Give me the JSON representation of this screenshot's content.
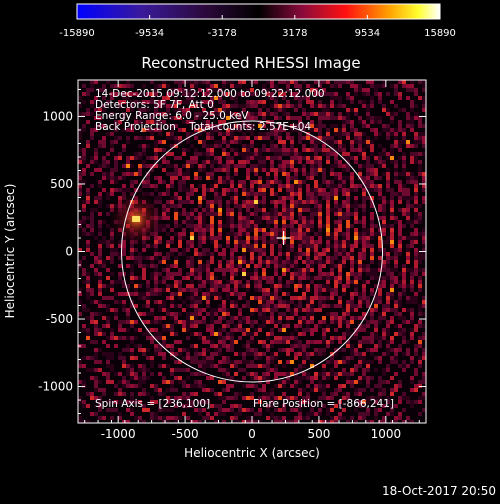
{
  "colorbar": {
    "ticks": [
      "-15890",
      "-9534",
      "-3178",
      "3178",
      "9534",
      "15890"
    ],
    "tick_values": [
      -15890,
      -9534,
      -3178,
      3178,
      9534,
      15890
    ],
    "range": [
      -15890,
      15890
    ],
    "colors": [
      "#0000ff",
      "#000000",
      "#ff0000",
      "#ffff00",
      "#ffffff"
    ]
  },
  "plot": {
    "title": "Reconstructed RHESSI Image",
    "xlabel": "Heliocentric X (arcsec)",
    "ylabel": "Heliocentric Y (arcsec)",
    "xlim": [
      -1300,
      1300
    ],
    "ylim": [
      -1270,
      1270
    ],
    "xticks": [
      "-1000",
      "-500",
      "0",
      "500",
      "1000"
    ],
    "xtick_values": [
      -1000,
      -500,
      0,
      500,
      1000
    ],
    "yticks": [
      "1000",
      "500",
      "0",
      "-500",
      "-1000"
    ],
    "ytick_values": [
      1000,
      500,
      0,
      -500,
      -1000
    ],
    "info_lines": [
      "14-Dec-2015 09:12:12.000 to 09:22:12.000",
      "Detectors: 5F 7F, Att 0",
      "Energy Range: 6.0 - 25.0 keV",
      "Back Projection    Total counts: 2.57E+04"
    ],
    "spin_axis": "Spin Axis = [236,100]",
    "flare_position": "Flare Position = [-866,241]",
    "solar_disk": {
      "center": [
        0,
        0
      ],
      "radius": 975
    },
    "crosshair": [
      236,
      100
    ],
    "flare_xy": [
      -866,
      241
    ]
  },
  "footer": {
    "timestamp": "18-Oct-2017 20:50"
  }
}
